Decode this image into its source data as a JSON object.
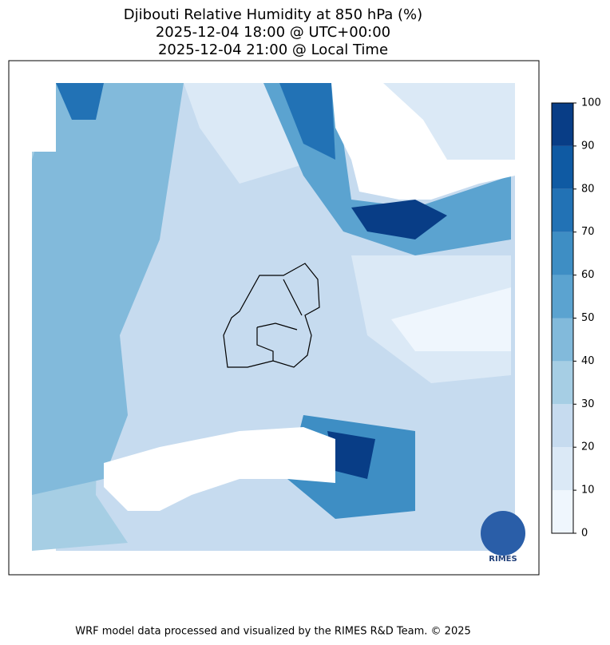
{
  "header": {
    "title": [
      "Djibouti Relative Humidity at 850 hPa (%)",
      "2025-12-04 18:00 @ UTC+00:00",
      "2025-12-04 21:00 @ Local Time"
    ]
  },
  "colorbar": {
    "lim": [
      0,
      100
    ],
    "ticks": [
      0,
      10,
      20,
      30,
      40,
      50,
      60,
      70,
      80,
      90,
      100
    ],
    "colors": [
      "#eff6fd",
      "#dbe9f6",
      "#c6dbef",
      "#a6cee4",
      "#82badb",
      "#5ba3d0",
      "#3e8ec4",
      "#2272b5",
      "#0f5aa3",
      "#083d86"
    ]
  },
  "logo": "RIMES",
  "footer": "WRF model data processed and visualized by the RIMES R&D Team. © 2025"
}
